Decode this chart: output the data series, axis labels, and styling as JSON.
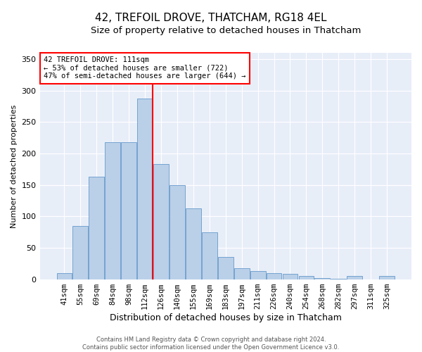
{
  "title": "42, TREFOIL DROVE, THATCHAM, RG18 4EL",
  "subtitle": "Size of property relative to detached houses in Thatcham",
  "xlabel": "Distribution of detached houses by size in Thatcham",
  "ylabel": "Number of detached properties",
  "categories": [
    "41sqm",
    "55sqm",
    "69sqm",
    "84sqm",
    "98sqm",
    "112sqm",
    "126sqm",
    "140sqm",
    "155sqm",
    "169sqm",
    "183sqm",
    "197sqm",
    "211sqm",
    "226sqm",
    "240sqm",
    "254sqm",
    "268sqm",
    "282sqm",
    "297sqm",
    "311sqm",
    "325sqm"
  ],
  "values": [
    10,
    85,
    163,
    218,
    218,
    287,
    183,
    150,
    113,
    75,
    35,
    17,
    13,
    10,
    8,
    5,
    2,
    1,
    5,
    0,
    5
  ],
  "bar_color": "#bad0e8",
  "bar_edge_color": "#6699cc",
  "vline_index": 5,
  "vline_color": "red",
  "ylim": [
    0,
    360
  ],
  "yticks": [
    0,
    50,
    100,
    150,
    200,
    250,
    300,
    350
  ],
  "annotation_title": "42 TREFOIL DROVE: 111sqm",
  "annotation_line1": "← 53% of detached houses are smaller (722)",
  "annotation_line2": "47% of semi-detached houses are larger (644) →",
  "annotation_box_color": "white",
  "annotation_box_edge": "red",
  "footer_line1": "Contains HM Land Registry data © Crown copyright and database right 2024.",
  "footer_line2": "Contains public sector information licensed under the Open Government Licence v3.0.",
  "bg_color": "#e8eef8",
  "grid_color": "white",
  "title_fontsize": 11,
  "subtitle_fontsize": 9.5,
  "tick_fontsize": 7.5,
  "ylabel_fontsize": 8,
  "xlabel_fontsize": 9
}
